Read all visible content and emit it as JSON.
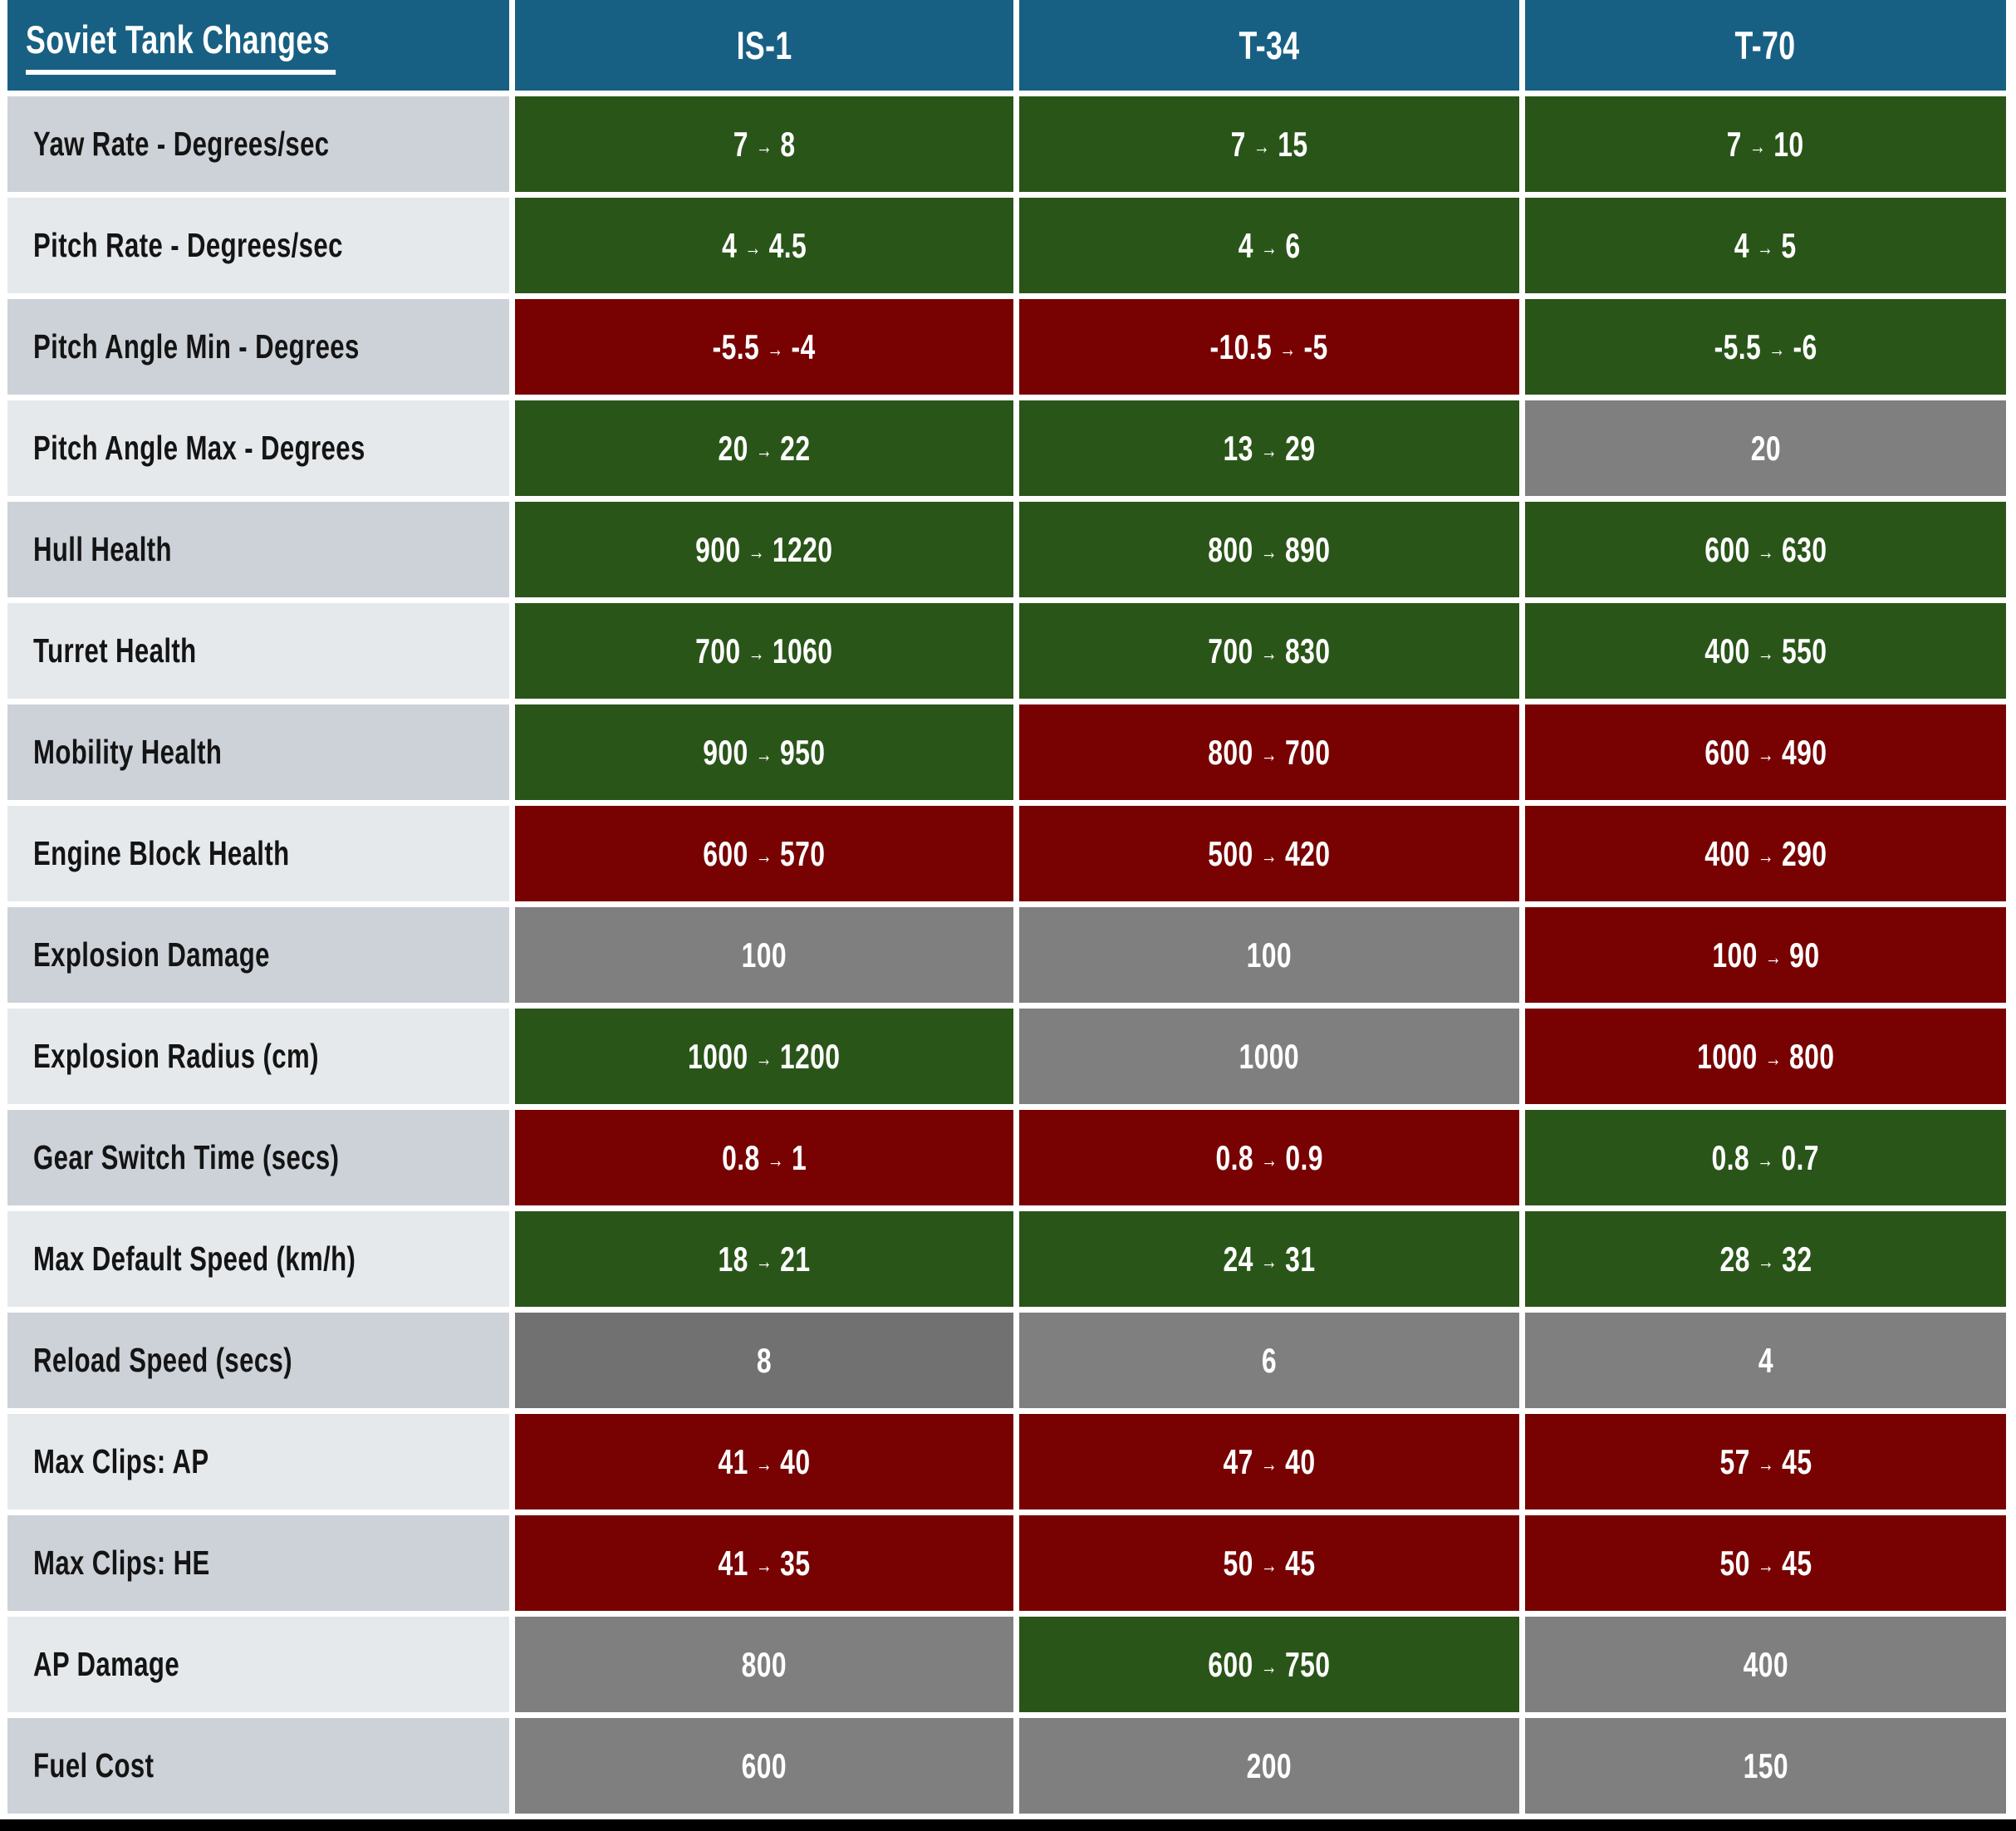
{
  "legend": {
    "header_color": "#186083",
    "buff_color": "#2A5519",
    "nerf_color": "#780202",
    "unchanged_color": "#7F7F7F",
    "unchanged_dark_color": "#717171",
    "row_label_dark": "#CDD2D9",
    "row_label_light": "#E5E9EC",
    "arrow": "→"
  },
  "chart_data": {
    "type": "table",
    "title": "Soviet Tank Changes",
    "columns": [
      "IS-1",
      "T-34",
      "T-70"
    ],
    "rows": [
      {
        "label": "Yaw Rate - Degrees/sec",
        "cells": [
          {
            "from": "7",
            "to": "8",
            "status": "buff"
          },
          {
            "from": "7",
            "to": "15",
            "status": "buff"
          },
          {
            "from": "7",
            "to": "10",
            "status": "buff"
          }
        ]
      },
      {
        "label": "Pitch Rate - Degrees/sec",
        "cells": [
          {
            "from": "4",
            "to": "4.5",
            "status": "buff"
          },
          {
            "from": "4",
            "to": "6",
            "status": "buff"
          },
          {
            "from": "4",
            "to": "5",
            "status": "buff"
          }
        ]
      },
      {
        "label": "Pitch Angle Min - Degrees",
        "cells": [
          {
            "from": "-5.5",
            "to": "-4",
            "status": "nerf"
          },
          {
            "from": "-10.5",
            "to": "-5",
            "status": "nerf"
          },
          {
            "from": "-5.5",
            "to": "-6",
            "status": "buff"
          }
        ]
      },
      {
        "label": "Pitch Angle Max - Degrees",
        "cells": [
          {
            "from": "20",
            "to": "22",
            "status": "buff"
          },
          {
            "from": "13",
            "to": "29",
            "status": "buff"
          },
          {
            "from": "20",
            "to": null,
            "status": "unchanged"
          }
        ]
      },
      {
        "label": "Hull Health",
        "cells": [
          {
            "from": "900",
            "to": "1220",
            "status": "buff"
          },
          {
            "from": "800",
            "to": "890",
            "status": "buff"
          },
          {
            "from": "600",
            "to": "630",
            "status": "buff"
          }
        ]
      },
      {
        "label": "Turret Health",
        "cells": [
          {
            "from": "700",
            "to": "1060",
            "status": "buff"
          },
          {
            "from": "700",
            "to": "830",
            "status": "buff"
          },
          {
            "from": "400",
            "to": "550",
            "status": "buff"
          }
        ]
      },
      {
        "label": "Mobility Health",
        "cells": [
          {
            "from": "900",
            "to": "950",
            "status": "buff"
          },
          {
            "from": "800",
            "to": "700",
            "status": "nerf"
          },
          {
            "from": "600",
            "to": "490",
            "status": "nerf"
          }
        ]
      },
      {
        "label": "Engine Block Health",
        "cells": [
          {
            "from": "600",
            "to": "570",
            "status": "nerf"
          },
          {
            "from": "500",
            "to": "420",
            "status": "nerf"
          },
          {
            "from": "400",
            "to": "290",
            "status": "nerf"
          }
        ]
      },
      {
        "label": "Explosion Damage",
        "cells": [
          {
            "from": "100",
            "to": null,
            "status": "unchanged"
          },
          {
            "from": "100",
            "to": null,
            "status": "unchanged"
          },
          {
            "from": "100",
            "to": "90",
            "status": "nerf"
          }
        ]
      },
      {
        "label": "Explosion Radius (cm)",
        "cells": [
          {
            "from": "1000",
            "to": "1200",
            "status": "buff"
          },
          {
            "from": "1000",
            "to": null,
            "status": "unchanged"
          },
          {
            "from": "1000",
            "to": "800",
            "status": "nerf"
          }
        ]
      },
      {
        "label": "Gear Switch Time (secs)",
        "cells": [
          {
            "from": "0.8",
            "to": "1",
            "status": "nerf"
          },
          {
            "from": "0.8",
            "to": "0.9",
            "status": "nerf"
          },
          {
            "from": "0.8",
            "to": "0.7",
            "status": "buff"
          }
        ]
      },
      {
        "label": "Max Default Speed (km/h)",
        "cells": [
          {
            "from": "18",
            "to": "21",
            "status": "buff"
          },
          {
            "from": "24",
            "to": "31",
            "status": "buff"
          },
          {
            "from": "28",
            "to": "32",
            "status": "buff"
          }
        ]
      },
      {
        "label": "Reload Speed (secs)",
        "cells": [
          {
            "from": "8",
            "to": null,
            "status": "unchanged",
            "variant": "dark"
          },
          {
            "from": "6",
            "to": null,
            "status": "unchanged"
          },
          {
            "from": "4",
            "to": null,
            "status": "unchanged"
          }
        ]
      },
      {
        "label": "Max Clips: AP",
        "cells": [
          {
            "from": "41",
            "to": "40",
            "status": "nerf"
          },
          {
            "from": "47",
            "to": "40",
            "status": "nerf"
          },
          {
            "from": "57",
            "to": "45",
            "status": "nerf"
          }
        ]
      },
      {
        "label": "Max Clips: HE",
        "cells": [
          {
            "from": "41",
            "to": "35",
            "status": "nerf"
          },
          {
            "from": "50",
            "to": "45",
            "status": "nerf"
          },
          {
            "from": "50",
            "to": "45",
            "status": "nerf"
          }
        ]
      },
      {
        "label": "AP Damage",
        "cells": [
          {
            "from": "800",
            "to": null,
            "status": "unchanged"
          },
          {
            "from": "600",
            "to": "750",
            "status": "buff"
          },
          {
            "from": "400",
            "to": null,
            "status": "unchanged"
          }
        ]
      },
      {
        "label": "Fuel Cost",
        "cells": [
          {
            "from": "600",
            "to": null,
            "status": "unchanged"
          },
          {
            "from": "200",
            "to": null,
            "status": "unchanged"
          },
          {
            "from": "150",
            "to": null,
            "status": "unchanged"
          }
        ]
      }
    ]
  }
}
